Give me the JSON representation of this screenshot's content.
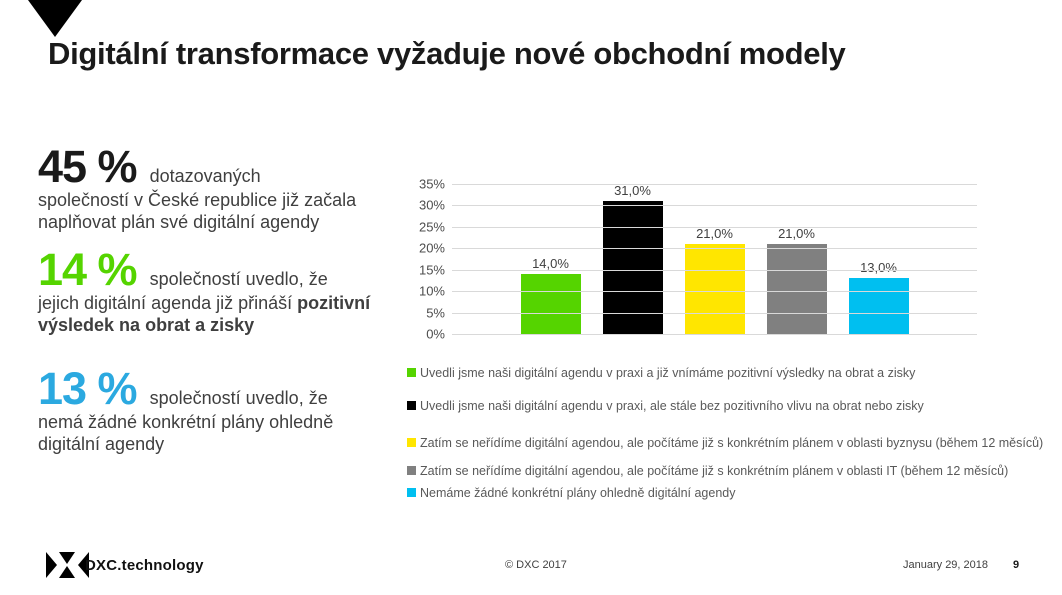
{
  "title": "Digitální transformace vyžaduje nové obchodní modely",
  "stats": [
    {
      "value": "45 %",
      "lead": "dotazovaných",
      "text": "společností v České republice již začala naplňovat plán své digitální agendy",
      "color": "#1a1a1a"
    },
    {
      "value": "14 %",
      "lead": "společností uvedlo, že",
      "text": "jejich digitální agenda již přináší",
      "bold": "pozitivní výsledek na obrat a zisky",
      "color": "#55d400"
    },
    {
      "value": "13 %",
      "lead": "společností uvedlo, že",
      "text": "nemá žádné konkrétní plány ohledně digitální agendy",
      "color": "#2ba9e0"
    }
  ],
  "chart_data": {
    "type": "bar",
    "title": "",
    "xlabel": "",
    "ylabel": "",
    "categories": [
      "Uvedli jsme naši digitální agendu v praxi a již vnímáme pozitivní výsledky na obrat a zisky",
      "Uvedli jsme naši digitální agendu v praxi, ale stále bez pozitivního vlivu na obrat nebo zisky",
      "Zatím se neřídíme digitální agendou, ale počítáme již s konkrétním plánem v oblasti byznysu (během 12 měsíců)",
      "Zatím se neřídíme digitální agendou, ale počítáme již s konkrétním plánem v oblasti IT (během 12 měsíců)",
      "Nemáme žádné konkrétní plány ohledně digitální agendy"
    ],
    "values": [
      14,
      31,
      21,
      21,
      13
    ],
    "value_labels": [
      "14,0%",
      "31,0%",
      "21,0%",
      "21,0%",
      "13,0%"
    ],
    "colors": [
      "#55d400",
      "#000000",
      "#ffe600",
      "#808080",
      "#00bff0"
    ],
    "y_ticks": [
      "35%",
      "30%",
      "25%",
      "20%",
      "15%",
      "10%",
      "5%",
      "0%"
    ],
    "ylim": [
      0,
      35
    ],
    "grid": true,
    "legend_position": "bottom",
    "legend": [
      "Uvedli jsme naši digitální agendu v praxi a již vnímáme pozitivní výsledky na obrat a zisky",
      "Uvedli jsme naši digitální agendu v praxi, ale stále bez pozitivního vlivu na obrat nebo zisky",
      "Zatím se neřídíme digitální agendou, ale počítáme již s konkrétním plánem v oblasti byznysu (během 12 měsíců)",
      "Zatím se neřídíme digitální agendou, ale počítáme již s konkrétním plánem v oblasti IT (během 12 měsíců)",
      "Nemáme žádné konkrétní plány ohledně digitální agendy"
    ]
  },
  "footer": {
    "brand": "DXC.technology",
    "copyright": "© DXC 2017",
    "date": "January 29, 2018",
    "page": "9"
  }
}
